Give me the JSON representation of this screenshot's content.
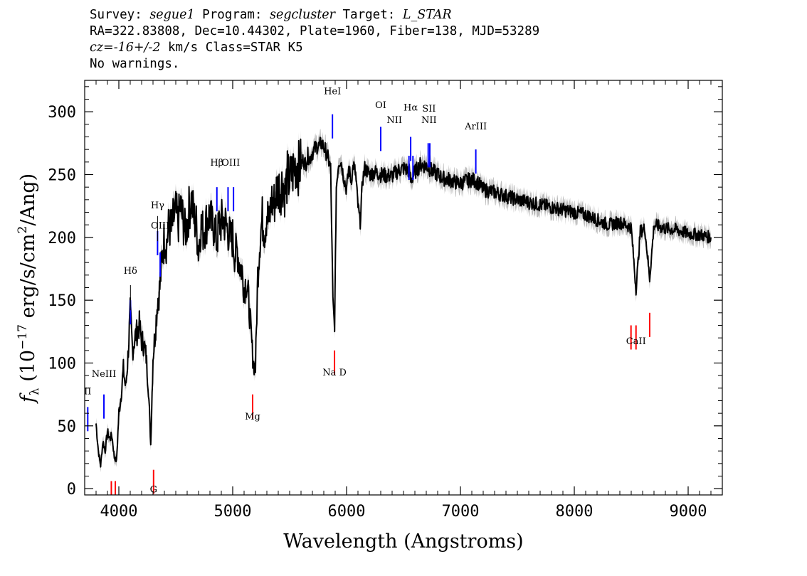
{
  "header": {
    "survey_label": "Survey:",
    "survey": "segue1",
    "program_label": "Program:",
    "program": "segcluster",
    "target_label": "Target:",
    "target": "L_STAR",
    "line2": "RA=322.83808, Dec=10.44302, Plate=1960, Fiber=138, MJD=53289",
    "cz_label": "cz=",
    "cz_value": "-16+/-2",
    "cz_rest": " km/s Class=STAR K5",
    "line4": "No warnings."
  },
  "chart_data": {
    "type": "line",
    "xlabel": "Wavelength (Angstroms)",
    "ylabel": "f_λ (10^-17 erg/s/cm^2/Ang)",
    "xlim": [
      3700,
      9300
    ],
    "ylim": [
      -5,
      325
    ],
    "x_ticks": [
      4000,
      5000,
      6000,
      7000,
      8000,
      9000
    ],
    "y_ticks": [
      0,
      50,
      100,
      150,
      200,
      250,
      300
    ],
    "grid": false,
    "colors": {
      "spectrum": "#000000",
      "error_band": "#aaaaaa",
      "emission": "#0000ff",
      "absorption": "#ff0000",
      "label_tick": "#000000"
    },
    "series": [
      {
        "x": [
          3800,
          3820,
          3840,
          3860,
          3880,
          3900,
          3920,
          3940,
          3960,
          3980,
          4000,
          4020,
          4040,
          4060,
          4080,
          4100,
          4120,
          4140,
          4160,
          4180,
          4200,
          4220,
          4240,
          4260,
          4280,
          4300,
          4320,
          4340,
          4360,
          4380,
          4400,
          4420,
          4440,
          4460,
          4480,
          4500,
          4520,
          4540,
          4560,
          4580,
          4600,
          4620,
          4640,
          4660,
          4680,
          4700,
          4720,
          4740,
          4760,
          4780,
          4800,
          4820,
          4840,
          4860,
          4880,
          4900,
          4920,
          4940,
          4960,
          4980,
          5000,
          5020,
          5040,
          5060,
          5080,
          5100,
          5120,
          5140,
          5160,
          5180,
          5200,
          5220,
          5240,
          5260,
          5280,
          5300,
          5320,
          5340,
          5360,
          5380,
          5400,
          5420,
          5440,
          5460,
          5480,
          5500,
          5520,
          5540,
          5560,
          5580,
          5600,
          5620,
          5640,
          5660,
          5680,
          5700,
          5720,
          5740,
          5760,
          5780,
          5800,
          5820,
          5840,
          5860,
          5880,
          5895,
          5910,
          5930,
          5950,
          5970,
          6000,
          6020,
          6040,
          6060,
          6080,
          6100,
          6120,
          6140,
          6160,
          6180,
          6200,
          6250,
          6300,
          6350,
          6400,
          6450,
          6500,
          6550,
          6563,
          6600,
          6650,
          6700,
          6750,
          6800,
          6850,
          6900,
          6950,
          7000,
          7050,
          7100,
          7150,
          7200,
          7300,
          7400,
          7500,
          7600,
          7700,
          7800,
          7900,
          8000,
          8100,
          8200,
          8300,
          8400,
          8500,
          8542,
          8580,
          8620,
          8662,
          8700,
          8800,
          8900,
          9000,
          9100,
          9200
        ],
        "y": [
          52,
          30,
          18,
          38,
          30,
          45,
          40,
          42,
          25,
          22,
          60,
          75,
          95,
          80,
          105,
          140,
          110,
          120,
          125,
          130,
          118,
          115,
          105,
          80,
          35,
          105,
          125,
          150,
          160,
          185,
          200,
          195,
          210,
          205,
          215,
          220,
          210,
          225,
          215,
          205,
          210,
          225,
          230,
          215,
          210,
          190,
          210,
          205,
          210,
          215,
          218,
          208,
          210,
          195,
          210,
          212,
          214,
          210,
          205,
          198,
          200,
          185,
          190,
          178,
          175,
          160,
          165,
          150,
          125,
          100,
          96,
          170,
          200,
          215,
          205,
          220,
          210,
          230,
          225,
          235,
          240,
          238,
          245,
          235,
          248,
          245,
          250,
          255,
          260,
          255,
          258,
          262,
          258,
          265,
          263,
          268,
          270,
          273,
          272,
          275,
          272,
          268,
          262,
          255,
          150,
          128,
          240,
          260,
          262,
          250,
          238,
          255,
          245,
          258,
          250,
          225,
          212,
          245,
          255,
          253,
          250,
          252,
          250,
          249,
          249,
          253,
          255,
          253,
          245,
          252,
          258,
          257,
          253,
          250,
          247,
          246,
          244,
          243,
          245,
          246,
          244,
          238,
          236,
          233,
          230,
          228,
          226,
          224,
          222,
          220,
          218,
          214,
          210,
          212,
          208,
          158,
          205,
          207,
          167,
          210,
          207,
          206,
          203,
          202,
          200
        ]
      }
    ],
    "emission_lines": [
      {
        "label": "OII",
        "wavelength": 3727,
        "y": 65
      },
      {
        "label": "NeIII",
        "wavelength": 3869,
        "y": 75
      },
      {
        "label": "Hδ",
        "wavelength": 4102,
        "y": 150
      },
      {
        "label": "Hγ",
        "wavelength": 4340,
        "y": 205
      },
      {
        "label": "OIII",
        "wavelength": 4363,
        "y": 188
      },
      {
        "label": "Hβ",
        "wavelength": 4861,
        "y": 240
      },
      {
        "label": "OIII",
        "wavelength": 4959,
        "y": 240
      },
      {
        "label": "OIII",
        "wavelength": 5007,
        "y": 240
      },
      {
        "label": "HeI",
        "wavelength": 5876,
        "y": 298
      },
      {
        "label": "OI",
        "wavelength": 6300,
        "y": 288
      },
      {
        "label": "NII",
        "wavelength": 6548,
        "y": 265
      },
      {
        "label": "Hα",
        "wavelength": 6563,
        "y": 280
      },
      {
        "label": "NII",
        "wavelength": 6583,
        "y": 265
      },
      {
        "label": "SII",
        "wavelength": 6717,
        "y": 275
      },
      {
        "label": "SII",
        "wavelength": 6731,
        "y": 275
      },
      {
        "label": "ArIII",
        "wavelength": 7135,
        "y": 270
      }
    ],
    "absorption_lines": [
      {
        "label": "",
        "wavelength": 3934,
        "y": 6
      },
      {
        "label": "",
        "wavelength": 3969,
        "y": 6
      },
      {
        "label": "G",
        "wavelength": 4305,
        "y": 15
      },
      {
        "label": "Mg",
        "wavelength": 5175,
        "y": 75
      },
      {
        "label": "Na D",
        "wavelength": 5894,
        "y": 110
      },
      {
        "label": "CaII",
        "wavelength": 8498,
        "y": 130
      },
      {
        "label": "CaII",
        "wavelength": 8542,
        "y": 130
      },
      {
        "label": "CaII",
        "wavelength": 8662,
        "y": 140
      }
    ],
    "visible_labels": {
      "emission": [
        {
          "text": "II",
          "wavelength": 3727,
          "y": 75
        },
        {
          "text": "NeIII",
          "wavelength": 3869,
          "y": 89
        },
        {
          "text": "Hδ",
          "wavelength": 4102,
          "y": 171
        },
        {
          "text": "Hγ",
          "wavelength": 4340,
          "y": 223
        },
        {
          "text": "OIII",
          "wavelength": 4363,
          "y": 207
        },
        {
          "text": "Hβ",
          "wavelength": 4861,
          "y": 257
        },
        {
          "text": "OIII",
          "wavelength": 4983,
          "y": 257
        },
        {
          "text": "HeI",
          "wavelength": 5876,
          "y": 314
        },
        {
          "text": "OI",
          "wavelength": 6300,
          "y": 303
        },
        {
          "text": "NII",
          "wavelength": 6420,
          "y": 291
        },
        {
          "text": "Hα",
          "wavelength": 6563,
          "y": 301
        },
        {
          "text": "SII",
          "wavelength": 6724,
          "y": 300
        },
        {
          "text": "NII",
          "wavelength": 6724,
          "y": 291
        },
        {
          "text": "ArIII",
          "wavelength": 7135,
          "y": 286
        }
      ],
      "absorption": [
        {
          "text": "G",
          "wavelength": 4305,
          "y": -3
        },
        {
          "text": "Mg",
          "wavelength": 5175,
          "y": 55
        },
        {
          "text": "Na D",
          "wavelength": 5894,
          "y": 90
        },
        {
          "text": "CaII",
          "wavelength": 8542,
          "y": 115
        }
      ]
    }
  }
}
